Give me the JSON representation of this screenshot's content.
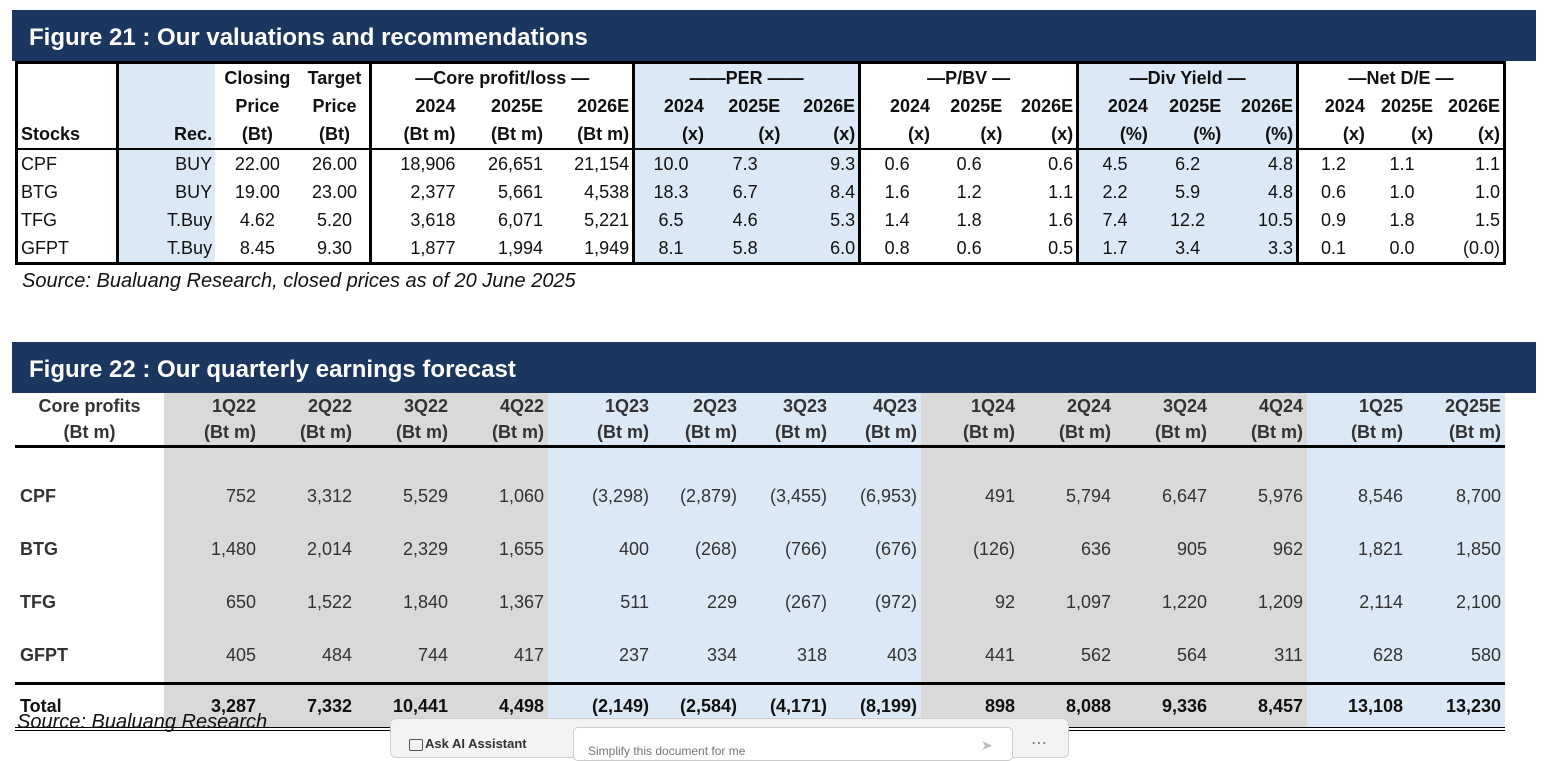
{
  "fig21": {
    "title": "Figure 21 :  Our valuations and recommendations",
    "source": "Source: Bualuang Research, closed prices as of 20 June 2025",
    "closing_l1": "Closing",
    "closing_l2": "Price",
    "closing_l3": "(Bt)",
    "target_l1": "Target",
    "target_l2": "Price",
    "target_l3": "(Bt)",
    "stocks_label": "Stocks",
    "rec_label": "Rec.",
    "group_core": "—Core profit/loss —",
    "group_per": "——PER ——",
    "group_pbv": "—P/BV —",
    "group_div": "—Div Yield —",
    "group_nde": "—Net D/E —",
    "years": [
      "2024",
      "2025E",
      "2026E"
    ],
    "unit_btm": "(Bt m)",
    "unit_x": "(x)",
    "unit_pct": "(%)",
    "rows": [
      {
        "stock": "CPF",
        "rec": "BUY",
        "close": "22.00",
        "target": "26.00",
        "core": [
          "18,906",
          "26,651",
          "21,154"
        ],
        "per": [
          "10.0",
          "7.3",
          "9.3"
        ],
        "pbv": [
          "0.6",
          "0.6",
          "0.6"
        ],
        "div": [
          "4.5",
          "6.2",
          "4.8"
        ],
        "nde": [
          "1.2",
          "1.1",
          "1.1"
        ]
      },
      {
        "stock": "BTG",
        "rec": "BUY",
        "close": "19.00",
        "target": "23.00",
        "core": [
          "2,377",
          "5,661",
          "4,538"
        ],
        "per": [
          "18.3",
          "6.7",
          "8.4"
        ],
        "pbv": [
          "1.6",
          "1.2",
          "1.1"
        ],
        "div": [
          "2.2",
          "5.9",
          "4.8"
        ],
        "nde": [
          "0.6",
          "1.0",
          "1.0"
        ]
      },
      {
        "stock": "TFG",
        "rec": "T.Buy",
        "close": "4.62",
        "target": "5.20",
        "core": [
          "3,618",
          "6,071",
          "5,221"
        ],
        "per": [
          "6.5",
          "4.6",
          "5.3"
        ],
        "pbv": [
          "1.4",
          "1.8",
          "1.6"
        ],
        "div": [
          "7.4",
          "12.2",
          "10.5"
        ],
        "nde": [
          "0.9",
          "1.8",
          "1.5"
        ]
      },
      {
        "stock": "GFPT",
        "rec": "T.Buy",
        "close": "8.45",
        "target": "9.30",
        "core": [
          "1,877",
          "1,994",
          "1,949"
        ],
        "per": [
          "8.1",
          "5.8",
          "6.0"
        ],
        "pbv": [
          "0.8",
          "0.6",
          "0.5"
        ],
        "div": [
          "1.7",
          "3.4",
          "3.3"
        ],
        "nde": [
          "0.1",
          "0.0",
          "(0.0)"
        ]
      }
    ]
  },
  "fig22": {
    "title": "Figure 22 :  Our quarterly earnings forecast",
    "source": "Source: Bualuang Research",
    "col0_l1": "Core profits",
    "col0_l2": "(Bt m)",
    "quarters": [
      "1Q22",
      "2Q22",
      "3Q22",
      "4Q22",
      "1Q23",
      "2Q23",
      "3Q23",
      "4Q23",
      "1Q24",
      "2Q24",
      "3Q24",
      "4Q24",
      "1Q25",
      "2Q25E"
    ],
    "unit": "(Bt m)",
    "rows": [
      {
        "label": "CPF",
        "values": [
          "752",
          "3,312",
          "5,529",
          "1,060",
          "(3,298)",
          "(2,879)",
          "(3,455)",
          "(6,953)",
          "491",
          "5,794",
          "6,647",
          "5,976",
          "8,546",
          "8,700"
        ]
      },
      {
        "label": "BTG",
        "values": [
          "1,480",
          "2,014",
          "2,329",
          "1,655",
          "400",
          "(268)",
          "(766)",
          "(676)",
          "(126)",
          "636",
          "905",
          "962",
          "1,821",
          "1,850"
        ]
      },
      {
        "label": "TFG",
        "values": [
          "650",
          "1,522",
          "1,840",
          "1,367",
          "511",
          "229",
          "(267)",
          "(972)",
          "92",
          "1,097",
          "1,220",
          "1,209",
          "2,114",
          "2,100"
        ]
      },
      {
        "label": "GFPT",
        "values": [
          "405",
          "484",
          "744",
          "417",
          "237",
          "334",
          "318",
          "403",
          "441",
          "562",
          "564",
          "311",
          "628",
          "580"
        ]
      }
    ],
    "total": {
      "label": "Total",
      "values": [
        "3,287",
        "7,332",
        "10,441",
        "4,498",
        "(2,149)",
        "(2,584)",
        "(4,171)",
        "(8,199)",
        "898",
        "8,088",
        "9,336",
        "8,457",
        "13,108",
        "13,230"
      ]
    }
  },
  "ai_assistant": {
    "label": "Ask AI Assistant",
    "placeholder": "Simplify this document for me",
    "send_icon": "send-icon",
    "more_icon": "more-icon"
  }
}
